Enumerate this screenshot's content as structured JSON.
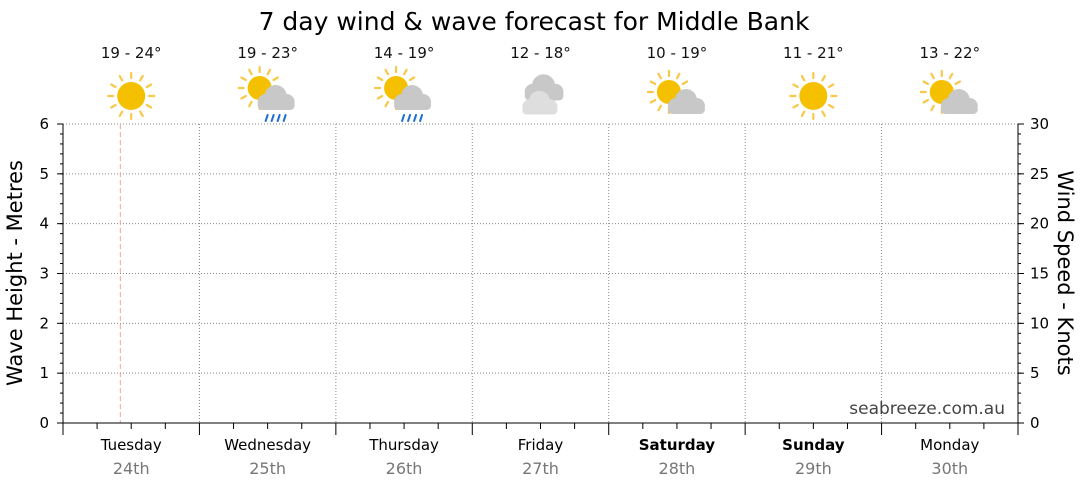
{
  "chart_data": {
    "type": "line",
    "title": "7 day wind & wave forecast for Middle Bank",
    "y_left": {
      "label": "Wave Height - Metres",
      "range": [
        0,
        6
      ],
      "ticks": [
        "0",
        "1",
        "2",
        "3",
        "4",
        "5",
        "6"
      ]
    },
    "y_right": {
      "label": "Wind Speed - Knots",
      "range": [
        0,
        30
      ],
      "ticks": [
        "0",
        "5",
        "10",
        "15",
        "20",
        "25",
        "30"
      ]
    },
    "grid": true,
    "series": [],
    "current_time_marker_day_fraction": 0.42,
    "days": [
      {
        "day": "Tuesday",
        "date": "24th",
        "temp": "19 - 24°",
        "icon": "sunny-icon",
        "bold": false
      },
      {
        "day": "Wednesday",
        "date": "25th",
        "temp": "19 - 23°",
        "icon": "partly-cloudy-rain-icon",
        "bold": false
      },
      {
        "day": "Thursday",
        "date": "26th",
        "temp": "14 - 19°",
        "icon": "partly-cloudy-rain-icon",
        "bold": false
      },
      {
        "day": "Friday",
        "date": "27th",
        "temp": "12 - 18°",
        "icon": "cloudy-icon",
        "bold": false
      },
      {
        "day": "Saturday",
        "date": "28th",
        "temp": "10 - 19°",
        "icon": "partly-cloudy-icon",
        "bold": true
      },
      {
        "day": "Sunday",
        "date": "29th",
        "temp": "11 - 21°",
        "icon": "sunny-icon",
        "bold": true
      },
      {
        "day": "Monday",
        "date": "30th",
        "temp": "13 - 22°",
        "icon": "partly-cloudy-icon",
        "bold": false
      }
    ],
    "watermark": "seabreeze.com.au",
    "colors": {
      "sun": "#f5c000",
      "sun_rays": "#f7c84a",
      "cloud": "#c8c8c8",
      "cloud_light": "#dedede",
      "rain": "#1f6fd1",
      "now_marker": "#f2a0a0",
      "grid": "#888888",
      "date_text": "#777777"
    }
  }
}
